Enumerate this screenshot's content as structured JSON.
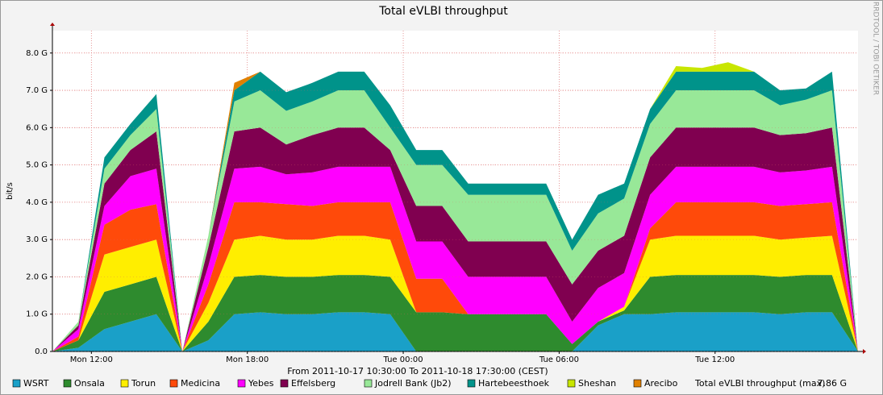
{
  "chart_data": {
    "type": "stacked_area",
    "title": "Total eVLBI throughput",
    "y_label": "bit/s",
    "credit": "RRDTOOL / TOBI OETIKER",
    "footer": "From 2011-10-17 10:30:00 To 2011-10-18 17:30:00 (CEST)",
    "x": [
      "2011-10-17 10:30",
      "2011-10-17 11:30",
      "2011-10-17 12:30",
      "2011-10-17 13:30",
      "2011-10-17 14:30",
      "2011-10-17 15:30",
      "2011-10-17 16:30",
      "2011-10-17 17:30",
      "2011-10-17 18:30",
      "2011-10-17 19:30",
      "2011-10-17 20:30",
      "2011-10-17 21:30",
      "2011-10-17 22:30",
      "2011-10-17 23:30",
      "2011-10-18 00:30",
      "2011-10-18 01:30",
      "2011-10-18 02:30",
      "2011-10-18 03:30",
      "2011-10-18 04:30",
      "2011-10-18 05:30",
      "2011-10-18 06:30",
      "2011-10-18 07:30",
      "2011-10-18 08:30",
      "2011-10-18 09:30",
      "2011-10-18 10:30",
      "2011-10-18 11:30",
      "2011-10-18 12:30",
      "2011-10-18 13:30",
      "2011-10-18 14:30",
      "2011-10-18 15:30",
      "2011-10-18 16:30",
      "2011-10-18 17:30"
    ],
    "xlim": [
      "2011-10-17 10:30",
      "2011-10-18 17:30"
    ],
    "xticks": [
      {
        "value": "2011-10-17 12:00",
        "label": "Mon 12:00"
      },
      {
        "value": "2011-10-17 18:00",
        "label": "Mon 18:00"
      },
      {
        "value": "2011-10-18 00:00",
        "label": "Tue 00:00"
      },
      {
        "value": "2011-10-18 06:00",
        "label": "Tue 06:00"
      },
      {
        "value": "2011-10-18 12:00",
        "label": "Tue 12:00"
      }
    ],
    "ylim": [
      0,
      8.6
    ],
    "yticks": [
      {
        "value": 0,
        "label": "0.0"
      },
      {
        "value": 1,
        "label": "1.0 G"
      },
      {
        "value": 2,
        "label": "2.0 G"
      },
      {
        "value": 3,
        "label": "3.0 G"
      },
      {
        "value": 4,
        "label": "4.0 G"
      },
      {
        "value": 5,
        "label": "5.0 G"
      },
      {
        "value": 6,
        "label": "6.0 G"
      },
      {
        "value": 7,
        "label": "7.0 G"
      },
      {
        "value": 8,
        "label": "8.0 G"
      }
    ],
    "grid": true,
    "series": [
      {
        "name": "WSRT",
        "color": "#1aa0c8",
        "values": [
          0,
          0.1,
          0.6,
          0.8,
          1.0,
          0,
          0.3,
          1,
          1.05,
          1,
          1,
          1.05,
          1.05,
          1,
          0,
          0,
          0,
          0,
          0,
          0,
          0,
          0.7,
          1,
          1,
          1.05,
          1.05,
          1.05,
          1.05,
          1.0,
          1.05,
          1.05,
          0
        ]
      },
      {
        "name": "Onsala",
        "color": "#2e8b2e",
        "values": [
          0,
          0.2,
          1,
          1,
          1,
          0,
          0.5,
          1,
          1,
          1,
          1,
          1,
          1,
          1,
          1.05,
          1.05,
          1,
          1,
          1,
          1,
          0.2,
          0.1,
          0.1,
          1,
          1,
          1,
          1,
          1,
          1,
          1,
          1,
          0
        ]
      },
      {
        "name": "Torun",
        "color": "#ffee00",
        "values": [
          0,
          0,
          1,
          1,
          1,
          0,
          0.5,
          1,
          1.05,
          1,
          1,
          1.05,
          1.05,
          1,
          0,
          0,
          0,
          0,
          0,
          0,
          0,
          0,
          0.1,
          1,
          1.05,
          1.05,
          1.05,
          1.05,
          1,
          1,
          1.05,
          0
        ]
      },
      {
        "name": "Medicina",
        "color": "#ff4a0a",
        "values": [
          0,
          0.1,
          0.8,
          1,
          0.95,
          0,
          0.5,
          1,
          0.9,
          0.95,
          0.9,
          0.9,
          0.9,
          1,
          0.9,
          0.9,
          0,
          0,
          0,
          0,
          0,
          0,
          0,
          0.3,
          0.9,
          0.9,
          0.9,
          0.9,
          0.9,
          0.9,
          0.9,
          0
        ]
      },
      {
        "name": "Yebes",
        "color": "#ff00ff",
        "values": [
          0,
          0.2,
          0.5,
          0.9,
          0.95,
          0,
          0.5,
          0.9,
          0.95,
          0.8,
          0.9,
          0.95,
          0.95,
          0.95,
          1,
          1,
          1,
          1,
          1,
          1,
          0.6,
          0.9,
          0.9,
          0.9,
          0.95,
          0.95,
          0.95,
          0.95,
          0.9,
          0.9,
          0.95,
          0
        ]
      },
      {
        "name": "Effelsberg",
        "color": "#800050",
        "values": [
          0,
          0.1,
          0.6,
          0.7,
          1,
          0,
          0.5,
          1,
          1.05,
          0.8,
          1,
          1.05,
          1.05,
          0.45,
          0.95,
          0.95,
          0.95,
          0.95,
          0.95,
          0.95,
          1,
          1,
          1,
          1,
          1.05,
          1.05,
          1.05,
          1.05,
          1,
          1,
          1.05,
          0
        ]
      },
      {
        "name": "Jodrell Bank (Jb2)",
        "color": "#98e898",
        "values": [
          0,
          0.1,
          0.4,
          0.4,
          0.6,
          0,
          0.3,
          0.8,
          1,
          0.9,
          0.9,
          1,
          1,
          0.6,
          1.1,
          1.1,
          1.25,
          1.25,
          1.25,
          1.25,
          0.9,
          1,
          1,
          0.9,
          1,
          1,
          1,
          1,
          0.8,
          0.9,
          1,
          0
        ]
      },
      {
        "name": "Hartebeesthoek",
        "color": "#00938a",
        "values": [
          0,
          0,
          0.3,
          0.3,
          0.4,
          0,
          0,
          0.3,
          0.5,
          0.5,
          0.5,
          0.5,
          0.5,
          0.6,
          0.4,
          0.4,
          0.3,
          0.3,
          0.3,
          0.3,
          0.3,
          0.5,
          0.4,
          0.4,
          0.5,
          0.5,
          0.5,
          0.5,
          0.4,
          0.3,
          0.5,
          0
        ]
      },
      {
        "name": "Sheshan",
        "color": "#c8e600",
        "values": [
          0,
          0,
          0,
          0,
          0,
          0,
          0,
          0,
          0,
          0,
          0,
          0,
          0,
          0,
          0,
          0,
          0,
          0,
          0,
          0,
          0,
          0,
          0,
          0,
          0.15,
          0.1,
          0.25,
          0,
          0,
          0,
          0,
          0
        ]
      },
      {
        "name": "Arecibo",
        "color": "#e08000",
        "values": [
          0,
          0,
          0,
          0,
          0,
          0,
          0,
          0.2,
          0,
          0,
          0,
          0,
          0,
          0,
          0,
          0,
          0,
          0,
          0,
          0,
          0,
          0,
          0,
          0,
          0,
          0,
          0,
          0,
          0,
          0,
          0,
          0
        ]
      }
    ],
    "total_max": {
      "name": "Total eVLBI throughput (max)",
      "label": "7.86 G"
    }
  }
}
